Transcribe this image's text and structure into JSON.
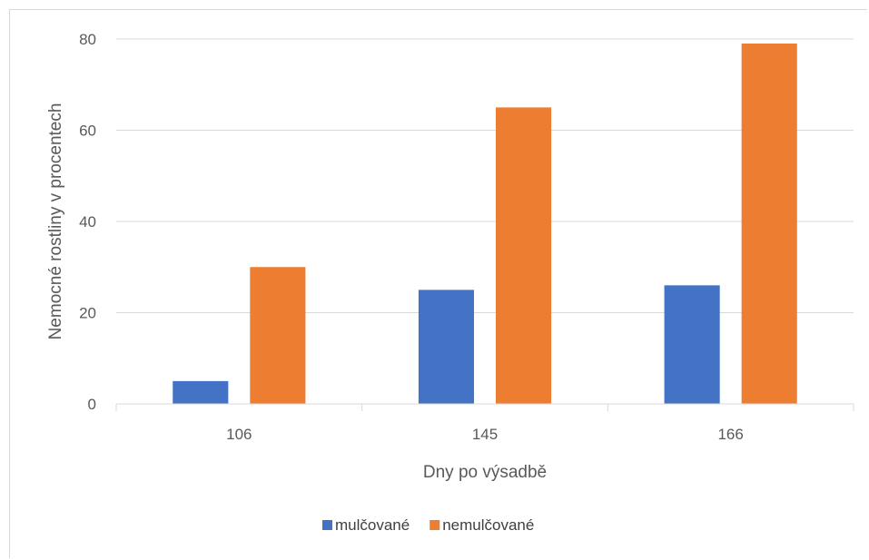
{
  "chart_data": {
    "type": "bar",
    "title": "",
    "xlabel": "Dny po výsadbě",
    "ylabel": "Nemocné rostliny v procentech",
    "categories": [
      "106",
      "145",
      "166"
    ],
    "series": [
      {
        "name": "mulčované",
        "values": [
          5,
          25,
          26
        ],
        "color": "#4472c4"
      },
      {
        "name": "nemulčované",
        "values": [
          30,
          65,
          79
        ],
        "color": "#ed7d31"
      }
    ],
    "ylim": [
      0,
      80
    ],
    "yticks": [
      "0",
      "20",
      "40",
      "60",
      "80"
    ],
    "grid": true,
    "legend_position": "bottom"
  }
}
